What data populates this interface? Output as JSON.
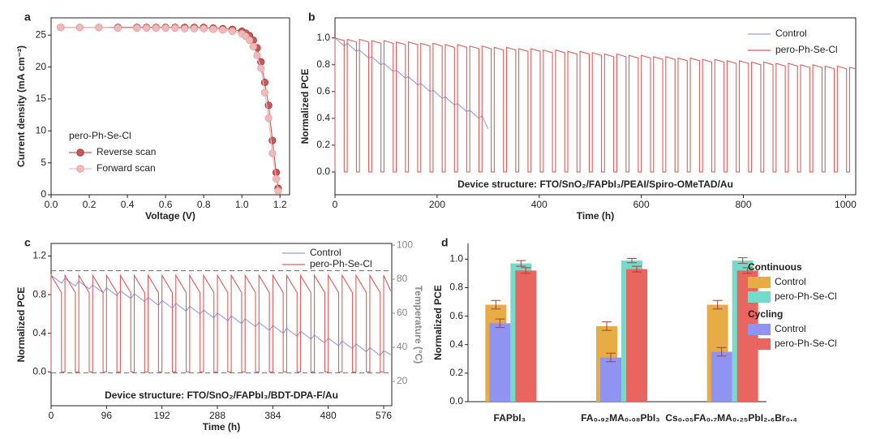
{
  "chart_data": [
    {
      "type": "line",
      "label": "a",
      "markers": true,
      "xlabel": "Voltage (V)",
      "ylabel": "Current density (mA cm⁻²)",
      "xlim": [
        0,
        1.25
      ],
      "xticks": [
        {
          "value": 0,
          "label": "0.0"
        },
        0.2,
        0.4,
        0.6,
        0.8,
        {
          "value": 1,
          "label": "1.0"
        },
        1.2
      ],
      "ylim": [
        0,
        27.7
      ],
      "yticks": [
        0,
        5,
        10,
        15,
        20,
        25
      ],
      "legend_title": "pero-Ph-Se-Cl",
      "x": [
        0.05,
        0.15,
        0.25,
        0.35,
        0.45,
        0.5,
        0.55,
        0.6,
        0.65,
        0.7,
        0.75,
        0.8,
        0.85,
        0.9,
        0.95,
        1.0,
        1.02,
        1.04,
        1.06,
        1.08,
        1.1,
        1.12,
        1.14,
        1.16,
        1.18,
        1.19
      ],
      "series": [
        {
          "name": "Reverse scan",
          "color": "#c9585a",
          "values": [
            26.2,
            26.2,
            26.2,
            26.2,
            26.2,
            26.2,
            26.2,
            26.2,
            26.2,
            26.2,
            26.2,
            26.2,
            26.1,
            26.0,
            25.9,
            25.6,
            25.3,
            24.9,
            24.2,
            23.0,
            20.8,
            17.6,
            14.0,
            8.5,
            3.5,
            1.0
          ]
        },
        {
          "name": "Forward scan",
          "color": "#f2b9b9",
          "values": [
            26.2,
            26.2,
            26.2,
            26.1,
            26.1,
            26.1,
            26.1,
            26.1,
            26.1,
            26.0,
            26.0,
            26.0,
            25.9,
            25.8,
            25.6,
            25.2,
            24.8,
            24.2,
            23.2,
            21.8,
            19.8,
            16.0,
            12.0,
            6.5,
            2.5,
            0.6
          ]
        }
      ]
    },
    {
      "type": "line",
      "label": "b",
      "xlabel": "Time (h)",
      "ylabel": "Normalized PCE",
      "annotation": "Device structure: FTO/SnO₂/FAPbI₃/PEAI/Spiro-OMeTAD/Au",
      "xlim": [
        0,
        1020
      ],
      "xticks": [
        0,
        200,
        400,
        600,
        800,
        1000
      ],
      "ylim": [
        -0.17,
        1.15
      ],
      "yticks": [
        {
          "value": 0,
          "label": "0.0"
        },
        0.2,
        0.4,
        0.6,
        0.8,
        {
          "value": 1,
          "label": "1.0"
        }
      ],
      "series": [
        {
          "name": "Control",
          "color": "#8fa0e0",
          "x": [
            0,
            18,
            24,
            42,
            48,
            66,
            72,
            90,
            96,
            114,
            120,
            138,
            144,
            162,
            168,
            186,
            192,
            210,
            216,
            234,
            240,
            258,
            264,
            282,
            288,
            300
          ],
          "values": [
            1.0,
            0.94,
            0.96,
            0.9,
            0.91,
            0.85,
            0.86,
            0.8,
            0.81,
            0.75,
            0.76,
            0.7,
            0.71,
            0.65,
            0.66,
            0.6,
            0.61,
            0.55,
            0.56,
            0.5,
            0.51,
            0.45,
            0.46,
            0.4,
            0.42,
            0.32
          ]
        },
        {
          "name": "pero-Ph-Se-Cl",
          "color": "#d9605e",
          "x": [
            0,
            0,
            18,
            18,
            24,
            24,
            42,
            42,
            48,
            48,
            66,
            66,
            72,
            72,
            90,
            90,
            96,
            96,
            114,
            114,
            120,
            120,
            138,
            138,
            144,
            144,
            162,
            162,
            168,
            168,
            186,
            186,
            192,
            192,
            210,
            210,
            216,
            216,
            234,
            234,
            240,
            240,
            258,
            258,
            264,
            264,
            282,
            282,
            288,
            288,
            306,
            306,
            312,
            312,
            330,
            330,
            336,
            336,
            354,
            354,
            360,
            360,
            378,
            378,
            384,
            384,
            402,
            402,
            408,
            408,
            426,
            426,
            432,
            432,
            450,
            450,
            456,
            456,
            474,
            474,
            480,
            480,
            498,
            498,
            504,
            504,
            522,
            522,
            528,
            528,
            546,
            546,
            552,
            552,
            570,
            570,
            576,
            576,
            594,
            594,
            600,
            600,
            618,
            618,
            624,
            624,
            642,
            642,
            648,
            648,
            666,
            666,
            672,
            672,
            690,
            690,
            696,
            696,
            714,
            714,
            720,
            720,
            738,
            738,
            744,
            744,
            762,
            762,
            768,
            768,
            786,
            786,
            792,
            792,
            810,
            810,
            816,
            816,
            834,
            834,
            840,
            840,
            858,
            858,
            864,
            864,
            882,
            882,
            888,
            888,
            906,
            906,
            912,
            912,
            930,
            930,
            936,
            936,
            954,
            954,
            960,
            960,
            978,
            978,
            984,
            984,
            1002,
            1002,
            1008,
            1008,
            1020
          ],
          "values": [
            0,
            1.0,
            0.98,
            0,
            0,
            0.99,
            0.97,
            0,
            0,
            0.99,
            0.97,
            0,
            0,
            0.98,
            0.96,
            0,
            0,
            0.98,
            0.96,
            0,
            0,
            0.97,
            0.95,
            0,
            0,
            0.97,
            0.95,
            0,
            0,
            0.96,
            0.94,
            0,
            0,
            0.96,
            0.94,
            0,
            0,
            0.95,
            0.93,
            0,
            0,
            0.95,
            0.93,
            0,
            0,
            0.94,
            0.92,
            0,
            0,
            0.94,
            0.92,
            0,
            0,
            0.93,
            0.91,
            0,
            0,
            0.93,
            0.91,
            0,
            0,
            0.92,
            0.9,
            0,
            0,
            0.92,
            0.9,
            0,
            0,
            0.91,
            0.89,
            0,
            0,
            0.91,
            0.89,
            0,
            0,
            0.9,
            0.88,
            0,
            0,
            0.9,
            0.88,
            0,
            0,
            0.89,
            0.87,
            0,
            0,
            0.88,
            0.86,
            0,
            0,
            0.88,
            0.86,
            0,
            0,
            0.87,
            0.85,
            0,
            0,
            0.87,
            0.85,
            0,
            0,
            0.86,
            0.84,
            0,
            0,
            0.86,
            0.84,
            0,
            0,
            0.85,
            0.83,
            0,
            0,
            0.85,
            0.83,
            0,
            0,
            0.84,
            0.82,
            0,
            0,
            0.84,
            0.82,
            0,
            0,
            0.83,
            0.81,
            0,
            0,
            0.83,
            0.81,
            0,
            0,
            0.82,
            0.8,
            0,
            0,
            0.82,
            0.8,
            0,
            0,
            0.81,
            0.79,
            0,
            0,
            0.81,
            0.79,
            0,
            0,
            0.8,
            0.78,
            0,
            0,
            0.8,
            0.78,
            0,
            0,
            0.79,
            0.77,
            0,
            0,
            0.79,
            0.77,
            0,
            0,
            0.78,
            0.77
          ]
        }
      ]
    },
    {
      "type": "line",
      "label": "c",
      "xlabel": "Time (h)",
      "ylabel": "Normalized PCE",
      "y2label": "Temperature (°C)",
      "annotation": "Device structure: FTO/SnO₂/FAPbI₃/BDT-DPA-F/Au",
      "xlim": [
        0,
        590
      ],
      "xticks": [
        0,
        96,
        192,
        288,
        384,
        480,
        576
      ],
      "ylim": [
        -0.35,
        1.33
      ],
      "yticks": [
        {
          "value": 0,
          "label": "0.0"
        },
        0.4,
        0.8,
        1.2
      ],
      "y2lim": [
        5.7,
        101
      ],
      "y2ticks": [
        20,
        40,
        60,
        80,
        100
      ],
      "series": [
        {
          "name": "Control",
          "color": "#8fa0e0",
          "x": [
            0,
            18,
            24,
            42,
            48,
            66,
            72,
            90,
            96,
            114,
            120,
            138,
            144,
            162,
            168,
            186,
            192,
            210,
            216,
            234,
            240,
            258,
            264,
            282,
            288,
            306,
            312,
            330,
            336,
            354,
            360,
            378,
            384,
            402,
            408,
            426,
            432,
            450,
            456,
            474,
            480,
            498,
            504,
            522,
            528,
            546,
            552,
            570,
            576,
            588
          ],
          "values": [
            1.0,
            0.92,
            0.97,
            0.89,
            0.94,
            0.86,
            0.9,
            0.82,
            0.87,
            0.79,
            0.84,
            0.76,
            0.81,
            0.73,
            0.77,
            0.69,
            0.74,
            0.66,
            0.71,
            0.63,
            0.68,
            0.6,
            0.64,
            0.56,
            0.61,
            0.53,
            0.58,
            0.5,
            0.55,
            0.47,
            0.51,
            0.43,
            0.48,
            0.4,
            0.45,
            0.37,
            0.42,
            0.34,
            0.38,
            0.3,
            0.35,
            0.27,
            0.32,
            0.24,
            0.29,
            0.21,
            0.25,
            0.17,
            0.22,
            0.18
          ]
        },
        {
          "name": "pero-Ph-Se-Cl",
          "color": "#d9605e",
          "x": [
            0,
            0,
            18,
            18,
            24,
            24,
            42,
            42,
            48,
            48,
            66,
            66,
            72,
            72,
            90,
            90,
            96,
            96,
            114,
            114,
            120,
            120,
            138,
            138,
            144,
            144,
            162,
            162,
            168,
            168,
            186,
            186,
            192,
            192,
            210,
            210,
            216,
            216,
            234,
            234,
            240,
            240,
            258,
            258,
            264,
            264,
            282,
            282,
            288,
            288,
            306,
            306,
            312,
            312,
            330,
            330,
            336,
            336,
            354,
            354,
            360,
            360,
            378,
            378,
            384,
            384,
            402,
            402,
            408,
            408,
            426,
            426,
            432,
            432,
            450,
            450,
            456,
            456,
            474,
            474,
            480,
            480,
            498,
            498,
            504,
            504,
            522,
            522,
            528,
            528,
            546,
            546,
            552,
            552,
            570,
            570,
            576,
            576,
            588
          ],
          "values": [
            0,
            1.0,
            0.82,
            0,
            0,
            1.0,
            0.82,
            0,
            0,
            1.0,
            0.82,
            0,
            0,
            1.0,
            0.82,
            0,
            0,
            1.0,
            0.82,
            0,
            0,
            1.0,
            0.82,
            0,
            0,
            1.0,
            0.82,
            0,
            0,
            1.0,
            0.82,
            0,
            0,
            1.0,
            0.82,
            0,
            0,
            1.0,
            0.82,
            0,
            0,
            1.0,
            0.82,
            0,
            0,
            1.0,
            0.82,
            0,
            0,
            1.0,
            0.82,
            0,
            0,
            1.0,
            0.82,
            0,
            0,
            1.0,
            0.82,
            0,
            0,
            1.0,
            0.82,
            0,
            0,
            1.0,
            0.82,
            0,
            0,
            1.0,
            0.82,
            0,
            0,
            1.0,
            0.82,
            0,
            0,
            1.0,
            0.82,
            0,
            0,
            1.0,
            0.82,
            0,
            0,
            1.0,
            0.82,
            0,
            0,
            1.0,
            0.82,
            0,
            0,
            1.0,
            0.82,
            0,
            0,
            1.0,
            0.84
          ]
        },
        {
          "color": "#777777",
          "dashed": true,
          "axis": "y2",
          "x": [
            0,
            590
          ],
          "values": [
            85,
            85
          ]
        },
        {
          "color": "#777777",
          "dashed": true,
          "axis": "y2",
          "x": [
            0,
            590
          ],
          "values": [
            25,
            25
          ]
        }
      ]
    },
    {
      "type": "bar",
      "label": "d",
      "ylabel": "Normalized PCE",
      "categories": [
        "FAPbI₃",
        "FA₀.₉₂MA₀.₀₈PbI₃",
        "Cs₀.₀₅FA₀.₇MA₀.₂₅PbI₂.₆Br₀.₄"
      ],
      "ylim": [
        0,
        1.11
      ],
      "yticks": [
        {
          "value": 0,
          "label": "0.0"
        },
        0.2,
        0.4,
        0.6,
        0.8,
        {
          "value": 1,
          "label": "1.0"
        }
      ],
      "series": [
        {
          "group": "Continuous",
          "name": "Control",
          "color": "#e8ac45",
          "values": [
            0.68,
            0.53,
            0.68
          ],
          "errors": [
            0.03,
            0.03,
            0.03
          ]
        },
        {
          "group": "Continuous",
          "name": "pero-Ph-Se-Cl",
          "color": "#74dbcb",
          "values": [
            0.97,
            0.99,
            0.99
          ],
          "errors": [
            0.02,
            0.015,
            0.02
          ]
        },
        {
          "group": "Cycling",
          "name": "Control",
          "color": "#8f93f2",
          "values": [
            0.55,
            0.31,
            0.35
          ],
          "errors": [
            0.03,
            0.03,
            0.03
          ]
        },
        {
          "group": "Cycling",
          "name": "pero-Ph-Se-Cl",
          "color": "#e8665f",
          "values": [
            0.92,
            0.93,
            0.92
          ],
          "errors": [
            0.02,
            0.02,
            0.02
          ]
        }
      ]
    }
  ]
}
